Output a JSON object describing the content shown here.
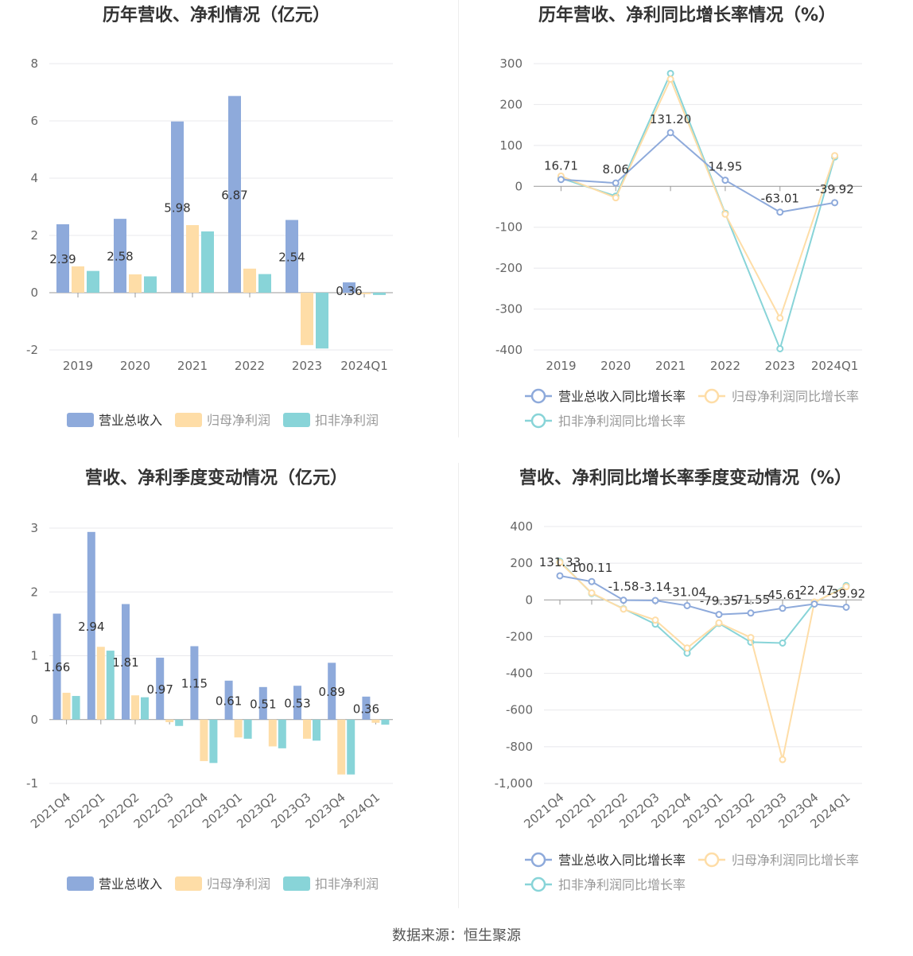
{
  "colors": {
    "revenue": "#8eaadb",
    "net_profit": "#fedda7",
    "deducted_profit": "#88d4d8",
    "axis_text": "#666666",
    "grid": "#e8e8ec",
    "label": "#333333"
  },
  "source": "数据来源：恒生聚源",
  "chart_data": [
    {
      "type": "bar",
      "title": "历年营收、净利情况（亿元）",
      "categories": [
        "2019",
        "2020",
        "2021",
        "2022",
        "2023",
        "2024Q1"
      ],
      "ylim": [
        -2,
        8
      ],
      "yticks": [
        -2,
        0,
        2,
        4,
        6,
        8
      ],
      "series": [
        {
          "name": "营业总收入",
          "values": [
            2.39,
            2.58,
            5.98,
            6.87,
            2.54,
            0.36
          ],
          "labels": [
            "2.39",
            "2.58",
            "5.98",
            "6.87",
            "2.54",
            "0.36"
          ]
        },
        {
          "name": "归母净利润",
          "values": [
            0.92,
            0.64,
            2.36,
            0.84,
            -1.83,
            -0.05
          ]
        },
        {
          "name": "扣非净利润",
          "values": [
            0.76,
            0.57,
            2.14,
            0.65,
            -1.95,
            -0.08
          ]
        }
      ],
      "legend": "bottom",
      "grid": true
    },
    {
      "type": "line",
      "title": "历年营收、净利同比增长率情况（%）",
      "categories": [
        "2019",
        "2020",
        "2021",
        "2022",
        "2023",
        "2024Q1"
      ],
      "ylim": [
        -400,
        300
      ],
      "yticks": [
        -400,
        -300,
        -200,
        -100,
        0,
        100,
        200,
        300
      ],
      "series": [
        {
          "name": "营业总收入同比增长率",
          "values": [
            16.71,
            8.06,
            131.2,
            14.95,
            -63.01,
            -39.92
          ],
          "labels": [
            "16.71",
            "8.06",
            "131.20",
            "14.95",
            "-63.01",
            "-39.92"
          ]
        },
        {
          "name": "归母净利润同比增长率",
          "values": [
            25,
            -28,
            262,
            -68,
            -322,
            75
          ]
        },
        {
          "name": "扣非净利润同比增长率",
          "values": [
            20,
            -24,
            276,
            -66,
            -397,
            72
          ]
        }
      ],
      "legend": "bottom",
      "grid": true
    },
    {
      "type": "bar",
      "title": "营收、净利季度变动情况（亿元）",
      "categories": [
        "2021Q4",
        "2022Q1",
        "2022Q2",
        "2022Q3",
        "2022Q4",
        "2023Q1",
        "2023Q2",
        "2023Q3",
        "2023Q4",
        "2024Q1"
      ],
      "ylim": [
        -1,
        3
      ],
      "yticks": [
        -1,
        0,
        1,
        2,
        3
      ],
      "series": [
        {
          "name": "营业总收入",
          "values": [
            1.66,
            2.94,
            1.81,
            0.97,
            1.15,
            0.61,
            0.51,
            0.53,
            0.89,
            0.36
          ],
          "labels": [
            "1.66",
            "2.94",
            "1.81",
            "0.97",
            "1.15",
            "0.61",
            "0.51",
            "0.53",
            "0.89",
            "0.36"
          ]
        },
        {
          "name": "归母净利润",
          "values": [
            0.42,
            1.14,
            0.38,
            -0.04,
            -0.65,
            -0.28,
            -0.42,
            -0.3,
            -0.86,
            -0.05
          ]
        },
        {
          "name": "扣非净利润",
          "values": [
            0.37,
            1.08,
            0.35,
            -0.1,
            -0.68,
            -0.3,
            -0.45,
            -0.33,
            -0.86,
            -0.08
          ]
        }
      ],
      "legend": "bottom",
      "grid": true
    },
    {
      "type": "line",
      "title": "营收、净利同比增长率季度变动情况（%）",
      "categories": [
        "2021Q4",
        "2022Q1",
        "2022Q2",
        "2022Q3",
        "2022Q4",
        "2023Q1",
        "2023Q2",
        "2023Q3",
        "2023Q4",
        "2024Q1"
      ],
      "ylim": [
        -1000,
        400
      ],
      "yticks": [
        -1000,
        -800,
        -600,
        -400,
        -200,
        0,
        200,
        400
      ],
      "ytick_labels": [
        "-1,000",
        "-800",
        "-600",
        "-400",
        "-200",
        "0",
        "200",
        "400"
      ],
      "series": [
        {
          "name": "营业总收入同比增长率",
          "values": [
            131.33,
            100.11,
            -1.58,
            -3.14,
            -31.04,
            -79.35,
            -71.55,
            -45.61,
            -22.47,
            -39.92
          ],
          "labels": [
            "131.33",
            "100.11",
            "-1.58",
            "-3.14",
            "-31.04",
            "-79.35",
            "-71.55",
            "-45.61",
            "-22.47",
            "-39.92"
          ]
        },
        {
          "name": "归母净利润同比增长率",
          "values": [
            205,
            38,
            -50,
            -110,
            -262,
            -125,
            -205,
            -870,
            -12,
            72
          ]
        },
        {
          "name": "扣非净利润同比增长率",
          "values": [
            210,
            35,
            -48,
            -132,
            -290,
            -128,
            -230,
            -235,
            -15,
            78
          ]
        }
      ],
      "legend": "bottom",
      "grid": true
    }
  ]
}
